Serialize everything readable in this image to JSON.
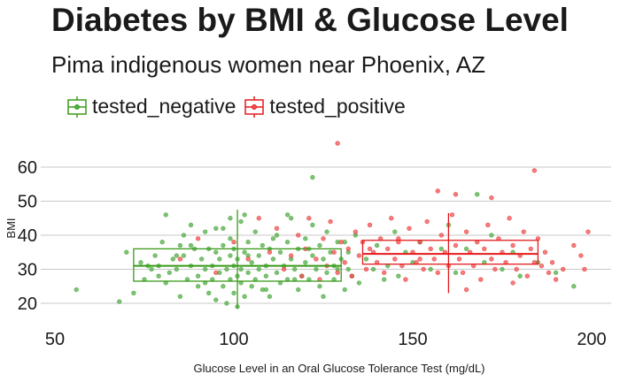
{
  "chart_data": {
    "type": "scatter",
    "title": "Diabetes by BMI & Glucose Level",
    "subtitle": "Pima indigenous women near Phoenix, AZ",
    "xlabel": "Glucose Level in an Oral Glucose Tolerance Test (mg/dL)",
    "ylabel": "BMI",
    "xlim": [
      50,
      200
    ],
    "ylim": [
      15,
      66
    ],
    "xticks": [
      50,
      100,
      150,
      200
    ],
    "yticks": [
      20,
      30,
      40,
      50,
      60
    ],
    "grid": "horizontal",
    "legend_position": "top-left",
    "series": [
      {
        "name": "tested_negative",
        "color": "#4daf4a",
        "stroke": "#3a9a1a",
        "box": {
          "x_q1": 72,
          "x_median": 101,
          "x_q3": 130,
          "y_q1": 26.5,
          "y_median": 31.0,
          "y_q3": 36.0,
          "whisker_y": [
            18.5,
            47.5
          ]
        },
        "points": [
          [
            56,
            24
          ],
          [
            68,
            20.5
          ],
          [
            70,
            35
          ],
          [
            72,
            23
          ],
          [
            74,
            32
          ],
          [
            75,
            27
          ],
          [
            76,
            31
          ],
          [
            77,
            30
          ],
          [
            78,
            34
          ],
          [
            79,
            28
          ],
          [
            80,
            38
          ],
          [
            81,
            46
          ],
          [
            81,
            26
          ],
          [
            82,
            29
          ],
          [
            83,
            33
          ],
          [
            84,
            30
          ],
          [
            85,
            22
          ],
          [
            85,
            37
          ],
          [
            86,
            34
          ],
          [
            87,
            27
          ],
          [
            88,
            31
          ],
          [
            88,
            43
          ],
          [
            89,
            36
          ],
          [
            90,
            28
          ],
          [
            90,
            25
          ],
          [
            91,
            33
          ],
          [
            92,
            41
          ],
          [
            92,
            30
          ],
          [
            93,
            23
          ],
          [
            93,
            36
          ],
          [
            94,
            27
          ],
          [
            94,
            31
          ],
          [
            95,
            35
          ],
          [
            95,
            21
          ],
          [
            95,
            42
          ],
          [
            96,
            29
          ],
          [
            96,
            33
          ],
          [
            97,
            25
          ],
          [
            97,
            37
          ],
          [
            98,
            30
          ],
          [
            98,
            20
          ],
          [
            99,
            34
          ],
          [
            99,
            27
          ],
          [
            99,
            39
          ],
          [
            100,
            31
          ],
          [
            100,
            23
          ],
          [
            100,
            36
          ],
          [
            101,
            28
          ],
          [
            101,
            19
          ],
          [
            101,
            33
          ],
          [
            102,
            44
          ],
          [
            102,
            26
          ],
          [
            102,
            30
          ],
          [
            103,
            35
          ],
          [
            103,
            22
          ],
          [
            104,
            29
          ],
          [
            104,
            38
          ],
          [
            105,
            32
          ],
          [
            105,
            25
          ],
          [
            106,
            27
          ],
          [
            106,
            41
          ],
          [
            107,
            34
          ],
          [
            107,
            30
          ],
          [
            108,
            24
          ],
          [
            108,
            37
          ],
          [
            109,
            31
          ],
          [
            109,
            28
          ],
          [
            110,
            36
          ],
          [
            110,
            22
          ],
          [
            111,
            33
          ],
          [
            112,
            29
          ],
          [
            112,
            40
          ],
          [
            113,
            26
          ],
          [
            113,
            35
          ],
          [
            114,
            31
          ],
          [
            115,
            38
          ],
          [
            115,
            27
          ],
          [
            116,
            33
          ],
          [
            116,
            45
          ],
          [
            117,
            30
          ],
          [
            118,
            36
          ],
          [
            118,
            24
          ],
          [
            119,
            28
          ],
          [
            120,
            39
          ],
          [
            120,
            32
          ],
          [
            121,
            27
          ],
          [
            122,
            34
          ],
          [
            122,
            43
          ],
          [
            123,
            30
          ],
          [
            124,
            37
          ],
          [
            124,
            25
          ],
          [
            125,
            33
          ],
          [
            126,
            41
          ],
          [
            126,
            29
          ],
          [
            127,
            35
          ],
          [
            128,
            31
          ],
          [
            128,
            27
          ],
          [
            129,
            38
          ],
          [
            130,
            33
          ],
          [
            131,
            24
          ],
          [
            132,
            30
          ],
          [
            132,
            35
          ],
          [
            133,
            28
          ],
          [
            134,
            40
          ],
          [
            135,
            26
          ],
          [
            137,
            33
          ],
          [
            139,
            30
          ],
          [
            140,
            37
          ],
          [
            142,
            27
          ],
          [
            143,
            31
          ],
          [
            145,
            41
          ],
          [
            146,
            28
          ],
          [
            148,
            35
          ],
          [
            150,
            32
          ],
          [
            152,
            38
          ],
          [
            155,
            30
          ],
          [
            158,
            36
          ],
          [
            160,
            43
          ],
          [
            162,
            29
          ],
          [
            165,
            36
          ],
          [
            168,
            52
          ],
          [
            170,
            32
          ],
          [
            172,
            40
          ],
          [
            175,
            30
          ],
          [
            178,
            35
          ],
          [
            180,
            28
          ],
          [
            185,
            32
          ],
          [
            190,
            29
          ],
          [
            195,
            25
          ],
          [
            122,
            57
          ],
          [
            115,
            46
          ],
          [
            88,
            37
          ],
          [
            92,
            26
          ],
          [
            97,
            42
          ],
          [
            104,
            34
          ],
          [
            109,
            24
          ],
          [
            111,
            39
          ],
          [
            117,
            27
          ],
          [
            121,
            36
          ],
          [
            125,
            22
          ],
          [
            129,
            30
          ],
          [
            131,
            38
          ],
          [
            84,
            34
          ],
          [
            79,
            31
          ],
          [
            86,
            40
          ],
          [
            103,
            46
          ],
          [
            99,
            45
          ]
        ]
      },
      {
        "name": "tested_positive",
        "color": "#f05050",
        "stroke": "#e41a1c",
        "box": {
          "x_q1": 136,
          "x_median": 160,
          "x_q3": 185,
          "y_q1": 31.5,
          "y_median": 34.5,
          "y_q3": 38.5,
          "whisker_y": [
            23,
            46.5
          ]
        },
        "points": [
          [
            85,
            33
          ],
          [
            90,
            39
          ],
          [
            95,
            29
          ],
          [
            100,
            38
          ],
          [
            104,
            33
          ],
          [
            107,
            45
          ],
          [
            110,
            35
          ],
          [
            112,
            42
          ],
          [
            114,
            30
          ],
          [
            116,
            34
          ],
          [
            118,
            40
          ],
          [
            119,
            28
          ],
          [
            120,
            36
          ],
          [
            121,
            45
          ],
          [
            123,
            33
          ],
          [
            124,
            27
          ],
          [
            125,
            39
          ],
          [
            126,
            31
          ],
          [
            127,
            44
          ],
          [
            128,
            35
          ],
          [
            129,
            29
          ],
          [
            129,
            67
          ],
          [
            130,
            38
          ],
          [
            131,
            32
          ],
          [
            132,
            36
          ],
          [
            133,
            28
          ],
          [
            134,
            41
          ],
          [
            135,
            34
          ],
          [
            136,
            38
          ],
          [
            137,
            30
          ],
          [
            138,
            43
          ],
          [
            139,
            35
          ],
          [
            140,
            32
          ],
          [
            141,
            39
          ],
          [
            142,
            29
          ],
          [
            143,
            36
          ],
          [
            144,
            45
          ],
          [
            145,
            33
          ],
          [
            146,
            38
          ],
          [
            147,
            31
          ],
          [
            148,
            27
          ],
          [
            149,
            42
          ],
          [
            150,
            35
          ],
          [
            151,
            32
          ],
          [
            152,
            38
          ],
          [
            153,
            30
          ],
          [
            154,
            44
          ],
          [
            155,
            36
          ],
          [
            156,
            33
          ],
          [
            157,
            29
          ],
          [
            158,
            40
          ],
          [
            159,
            35
          ],
          [
            160,
            31
          ],
          [
            161,
            46
          ],
          [
            162,
            37
          ],
          [
            162,
            52
          ],
          [
            163,
            33
          ],
          [
            164,
            29
          ],
          [
            165,
            41
          ],
          [
            166,
            35
          ],
          [
            167,
            31
          ],
          [
            168,
            38
          ],
          [
            169,
            27
          ],
          [
            170,
            36
          ],
          [
            171,
            43
          ],
          [
            172,
            33
          ],
          [
            173,
            30
          ],
          [
            174,
            39
          ],
          [
            175,
            35
          ],
          [
            176,
            32
          ],
          [
            177,
            45
          ],
          [
            178,
            37
          ],
          [
            179,
            30
          ],
          [
            180,
            34
          ],
          [
            181,
            41
          ],
          [
            182,
            28
          ],
          [
            183,
            36
          ],
          [
            184,
            32
          ],
          [
            185,
            39
          ],
          [
            186,
            31
          ],
          [
            187,
            35
          ],
          [
            188,
            29
          ],
          [
            189,
            32
          ],
          [
            190,
            27
          ],
          [
            192,
            30
          ],
          [
            195,
            37
          ],
          [
            197,
            34
          ],
          [
            198,
            30
          ],
          [
            199,
            41
          ],
          [
            184,
            59
          ],
          [
            157,
            53
          ],
          [
            172,
            51
          ],
          [
            165,
            24
          ],
          [
            178,
            26
          ],
          [
            146,
            39
          ],
          [
            138,
            36
          ],
          [
            152,
            33
          ]
        ]
      }
    ]
  }
}
